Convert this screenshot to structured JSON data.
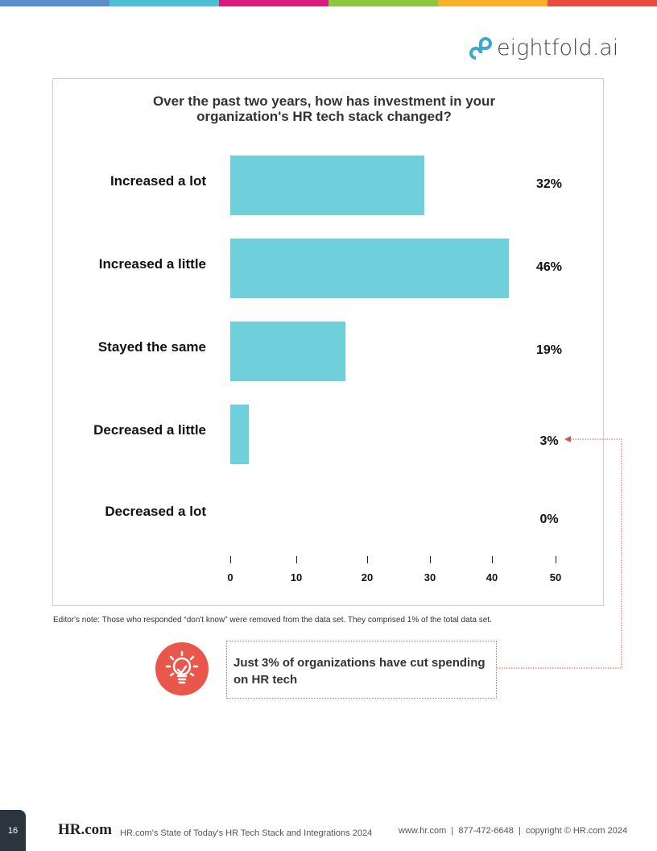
{
  "stripe_colors": [
    "#5b8fc9",
    "#4fbfd2",
    "#d81b7f",
    "#8dc63f",
    "#f9b12b",
    "#e84d3d"
  ],
  "logo": {
    "text": "eightfold.ai"
  },
  "chart_data": {
    "type": "bar",
    "orientation": "horizontal",
    "title": "Over the past two years, how has investment in your organization's HR tech stack changed?",
    "title_lines": [
      "Over the past two years, how has investment in your",
      "organization's HR tech stack changed?"
    ],
    "categories": [
      "Increased a lot",
      "Increased a little",
      "Stayed the same",
      "Decreased a little",
      "Decreased a lot"
    ],
    "values": [
      32,
      46,
      19,
      3,
      0
    ],
    "value_labels": [
      "32%",
      "46%",
      "19%",
      "3%",
      "0%"
    ],
    "xlim": [
      0,
      50
    ],
    "x_ticks": [
      "0",
      "10",
      "20",
      "30",
      "40",
      "50"
    ],
    "bar_color": "#6fcfdb",
    "grid": false
  },
  "note": "Editor's note: Those who responded “don't know” were removed from the data set. They comprised 1% of the total data set.",
  "callout": {
    "text": "Just 3% of organizations have cut spending on HR tech",
    "icon": "lightbulb-check-icon",
    "color": "#e9574a"
  },
  "footer": {
    "page": "16",
    "logo": "HR.com",
    "report": "HR.com's State of Today's HR Tech Stack and Integrations 2024",
    "site": "www.hr.com",
    "phone": "877-472-6648",
    "copyright": "copyright © HR.com 2024"
  }
}
